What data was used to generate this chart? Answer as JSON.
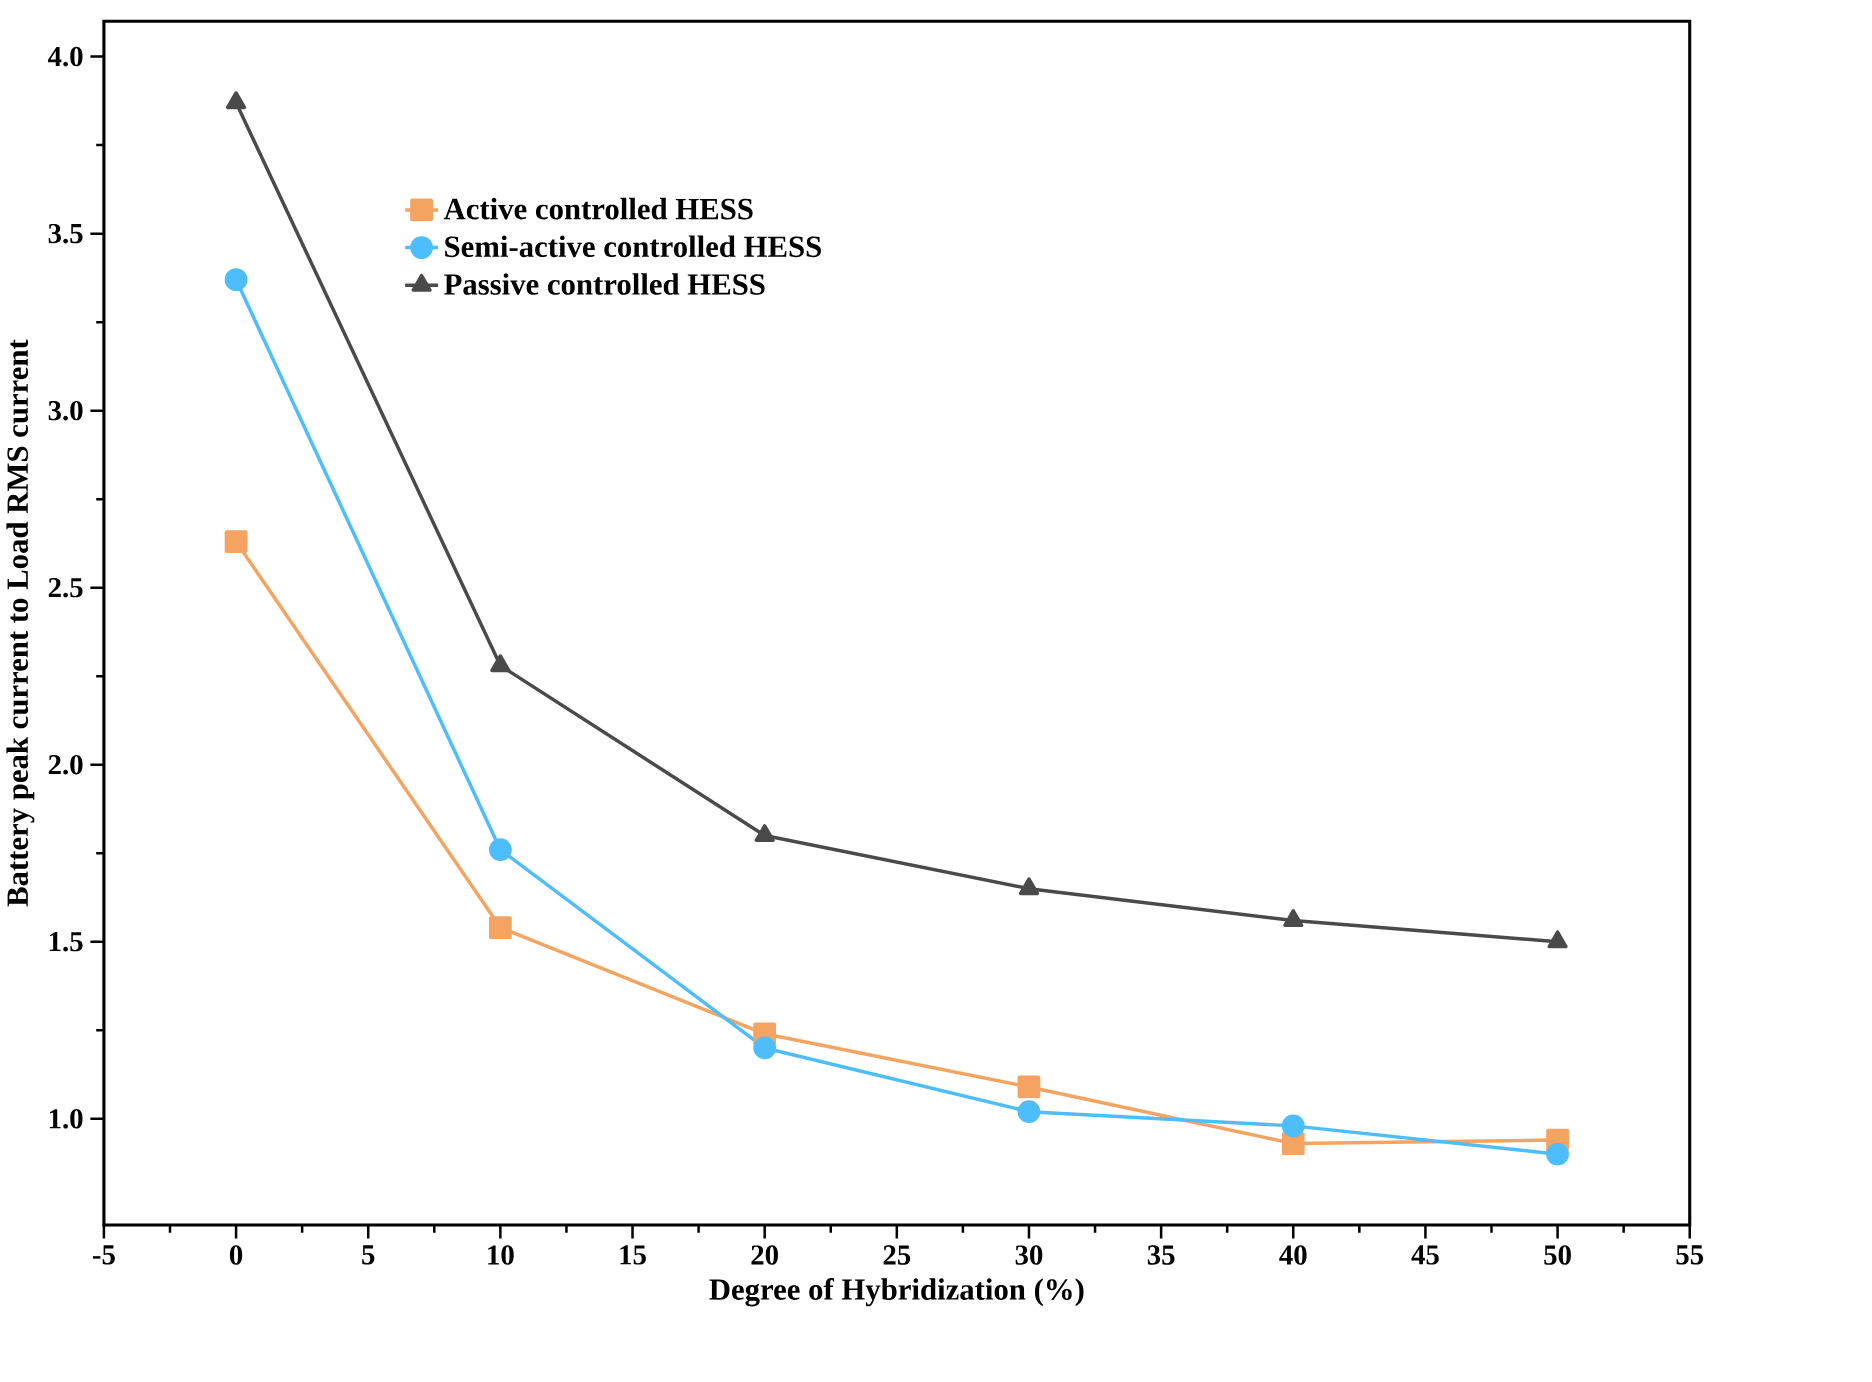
{
  "chart_data": {
    "type": "line",
    "xlabel": "Degree of Hybridization (%)",
    "ylabel": "Battery peak current to Load RMS current",
    "x": [
      0,
      10,
      20,
      30,
      40,
      50
    ],
    "series": [
      {
        "name": "Active controlled HESS",
        "color": "#f4a460",
        "marker": "square",
        "values": [
          2.63,
          1.54,
          1.24,
          1.09,
          0.93,
          0.94
        ]
      },
      {
        "name": "Semi-active controlled HESS",
        "color": "#4dbdfc",
        "marker": "circle",
        "values": [
          3.37,
          1.76,
          1.2,
          1.02,
          0.98,
          0.9
        ]
      },
      {
        "name": "Passive controlled HESS",
        "color": "#4a4a4a",
        "marker": "triangle",
        "values": [
          3.87,
          2.28,
          1.8,
          1.65,
          1.56,
          1.5
        ]
      }
    ],
    "xlim": [
      -5,
      55
    ],
    "ylim": [
      0.7,
      4.1
    ],
    "xticks": [
      -5,
      0,
      5,
      10,
      15,
      20,
      25,
      30,
      35,
      40,
      45,
      50,
      55
    ],
    "yticks": [
      {
        "value": 1.0,
        "label": "1.0"
      },
      {
        "value": 1.5,
        "label": "1.5"
      },
      {
        "value": 2.0,
        "label": "2.0"
      },
      {
        "value": 2.5,
        "label": "2.5"
      },
      {
        "value": 3.0,
        "label": "3.0"
      },
      {
        "value": 3.5,
        "label": "3.5"
      },
      {
        "value": 4.0,
        "label": "4.0"
      }
    ],
    "grid": false,
    "legend": "top left",
    "line_style": "solid"
  }
}
